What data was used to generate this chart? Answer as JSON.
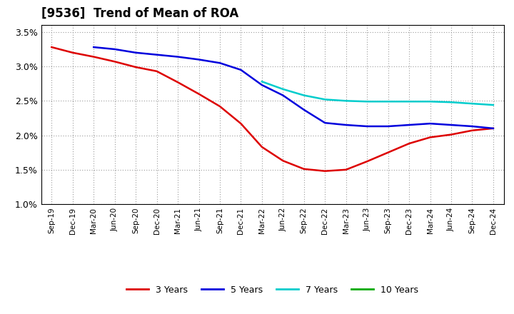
{
  "title": "[9536]  Trend of Mean of ROA",
  "ylim": [
    0.01,
    0.036
  ],
  "yticks": [
    0.01,
    0.015,
    0.02,
    0.025,
    0.03,
    0.035
  ],
  "ytick_labels": [
    "1.0%",
    "1.5%",
    "2.0%",
    "2.5%",
    "3.0%",
    "3.5%"
  ],
  "background_color": "#ffffff",
  "grid_color": "#999999",
  "x_labels": [
    "Sep-19",
    "Dec-19",
    "Mar-20",
    "Jun-20",
    "Sep-20",
    "Dec-20",
    "Mar-21",
    "Jun-21",
    "Sep-21",
    "Dec-21",
    "Mar-22",
    "Jun-22",
    "Sep-22",
    "Dec-22",
    "Mar-23",
    "Jun-23",
    "Sep-23",
    "Dec-23",
    "Mar-24",
    "Jun-24",
    "Sep-24",
    "Dec-24"
  ],
  "series_3y_color": "#dd0000",
  "series_5y_color": "#0000dd",
  "series_7y_color": "#00cccc",
  "series_10y_color": "#00aa00",
  "series_3y_x": [
    0,
    1,
    2,
    3,
    4,
    5,
    6,
    7,
    8,
    9,
    10,
    11,
    12,
    13,
    14,
    15,
    16,
    17,
    18,
    19,
    20,
    21
  ],
  "series_3y_y": [
    0.0328,
    0.032,
    0.0314,
    0.0307,
    0.0299,
    0.0293,
    0.0277,
    0.026,
    0.0242,
    0.0217,
    0.0183,
    0.0163,
    0.0151,
    0.0148,
    0.015,
    0.0162,
    0.0175,
    0.0188,
    0.0197,
    0.0201,
    0.0207,
    0.021
  ],
  "series_5y_x": [
    2,
    3,
    4,
    5,
    6,
    7,
    8,
    9,
    10,
    11,
    12,
    13,
    14,
    15,
    16,
    17,
    18,
    19,
    20,
    21
  ],
  "series_5y_y": [
    0.0328,
    0.0325,
    0.032,
    0.0317,
    0.0314,
    0.031,
    0.0305,
    0.0295,
    0.0273,
    0.0258,
    0.0237,
    0.0218,
    0.0215,
    0.0213,
    0.0213,
    0.0215,
    0.0217,
    0.0215,
    0.0213,
    0.021
  ],
  "series_7y_x": [
    10,
    11,
    12,
    13,
    14,
    15,
    16,
    17,
    18,
    19,
    20,
    21
  ],
  "series_7y_y": [
    0.0278,
    0.0267,
    0.0258,
    0.0252,
    0.025,
    0.0249,
    0.0249,
    0.0249,
    0.0249,
    0.0248,
    0.0246,
    0.0244
  ],
  "series_10y_x": [],
  "series_10y_y": [],
  "legend_entries": [
    "3 Years",
    "5 Years",
    "7 Years",
    "10 Years"
  ],
  "legend_colors": [
    "#dd0000",
    "#0000dd",
    "#00cccc",
    "#00aa00"
  ]
}
